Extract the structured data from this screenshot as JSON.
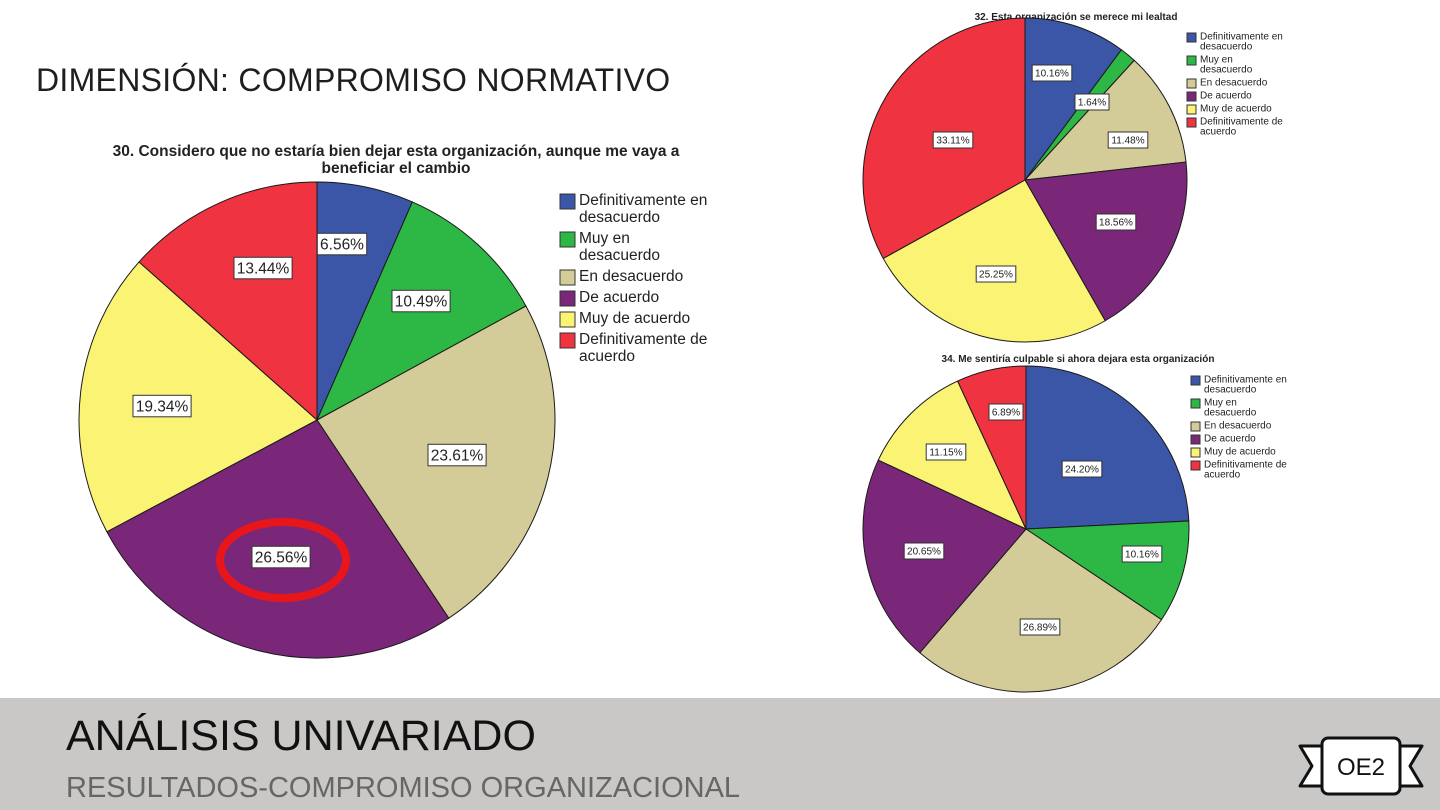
{
  "slide": {
    "heading": "DIMENSIÓN: COMPROMISO NORMATIVO",
    "footer_title": "ANÁLISIS UNIVARIADO",
    "footer_subtitle": "RESULTADOS-COMPROMISO ORGANIZACIONAL",
    "badge": "OE2",
    "colors": {
      "footer_bg": "#c9c8c6",
      "highlight_ring": "#e8161b"
    }
  },
  "chart_data": [
    {
      "type": "pie",
      "title": "30. Considero que no estaría bien dejar esta organización, aunque me vaya a beneficiar el cambio",
      "categories": [
        "Definitivamente en desacuerdo",
        "Muy en desacuerdo",
        "En desacuerdo",
        "De acuerdo",
        "Muy de acuerdo",
        "Definitivamente de acuerdo"
      ],
      "values": [
        6.56,
        10.49,
        23.61,
        26.56,
        19.34,
        13.44
      ],
      "labels": [
        "6.56%",
        "10.49%",
        "23.61%",
        "26.56%",
        "19.34%",
        "13.44%"
      ],
      "colors": [
        "#3b55a7",
        "#2db744",
        "#d4cc98",
        "#7b2779",
        "#fbf374",
        "#ef3340"
      ],
      "highlighted": "26.56%",
      "legend": "right"
    },
    {
      "type": "pie",
      "title": "32. Esta organización se merece mi lealtad",
      "categories": [
        "Definitivamente en desacuerdo",
        "Muy en desacuerdo",
        "En desacuerdo",
        "De acuerdo",
        "Muy de acuerdo",
        "Definitivamente de acuerdo"
      ],
      "values": [
        10.16,
        1.64,
        11.48,
        18.56,
        25.25,
        33.11
      ],
      "labels": [
        "10.16%",
        "1.64%",
        "11.48%",
        "18.56%",
        "25.25%",
        "33.11%"
      ],
      "colors": [
        "#3b55a7",
        "#2db744",
        "#d4cc98",
        "#7b2779",
        "#fbf374",
        "#ef3340"
      ],
      "legend": "right"
    },
    {
      "type": "pie",
      "title": "34. Me sentiría culpable si ahora dejara esta organización",
      "categories": [
        "Definitivamente en desacuerdo",
        "Muy en desacuerdo",
        "En desacuerdo",
        "De acuerdo",
        "Muy de acuerdo",
        "Definitivamente de acuerdo"
      ],
      "values": [
        24.2,
        10.16,
        26.89,
        20.65,
        11.15,
        6.89
      ],
      "labels": [
        "24.20%",
        "10.16%",
        "26.89%",
        "20.65%",
        "11.15%",
        "6.89%"
      ],
      "colors": [
        "#3b55a7",
        "#2db744",
        "#d4cc98",
        "#7b2779",
        "#fbf374",
        "#ef3340"
      ],
      "legend": "right"
    }
  ]
}
